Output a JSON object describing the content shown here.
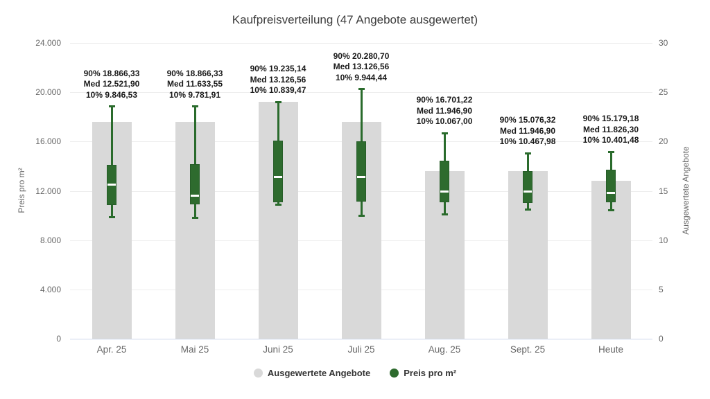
{
  "title": "Kaufpreisverteilung (47 Angebote ausgewertet)",
  "chart_data": {
    "type": "bar",
    "subtype": "bar+boxplot combo, dual y-axes",
    "categories": [
      "Apr. 25",
      "Mai 25",
      "Juni 25",
      "Juli 25",
      "Aug. 25",
      "Sept. 25",
      "Heute"
    ],
    "left_axis": {
      "label": "Preis pro m²",
      "range": [
        0,
        24000
      ],
      "tick_labels": [
        "24.000",
        "20.000",
        "16.000",
        "12.000",
        "8.000",
        "4.000",
        "0"
      ]
    },
    "right_axis": {
      "label": "Ausgewertete Angebote",
      "range": [
        0,
        30
      ],
      "tick_labels": [
        "30",
        "25",
        "20",
        "15",
        "10",
        "5",
        "0"
      ]
    },
    "grid": true,
    "legend_position": "bottom",
    "series": [
      {
        "name": "Ausgewertete Angebote",
        "type": "bar",
        "yaxis": "right",
        "color": "#d9d9d9",
        "values": [
          22,
          22,
          24,
          22,
          17,
          17,
          16
        ]
      },
      {
        "name": "Preis pro m²",
        "type": "boxplot",
        "yaxis": "left",
        "color": "#2e6b2e",
        "points": [
          {
            "p90": 18866.33,
            "q3": 14100,
            "med": 12521.9,
            "q1": 10850,
            "p10": 9846.53
          },
          {
            "p90": 18866.33,
            "q3": 14150,
            "med": 11633.55,
            "q1": 10900,
            "p10": 9781.91
          },
          {
            "p90": 19235.14,
            "q3": 16050,
            "med": 13126.56,
            "q1": 11050,
            "p10": 10839.47
          },
          {
            "p90": 20280.7,
            "q3": 16000,
            "med": 13126.56,
            "q1": 11100,
            "p10": 9944.44
          },
          {
            "p90": 16701.22,
            "q3": 14430,
            "med": 11946.9,
            "q1": 11050,
            "p10": 10067.0
          },
          {
            "p90": 15076.32,
            "q3": 13600,
            "med": 11946.9,
            "q1": 11020,
            "p10": 10467.98
          },
          {
            "p90": 15179.18,
            "q3": 13740,
            "med": 11826.3,
            "q1": 11050,
            "p10": 10401.48
          }
        ]
      }
    ],
    "annotations": [
      {
        "lines": [
          "90% 18.866,33",
          "Med 12.521,90",
          "10% 9.846,53"
        ]
      },
      {
        "lines": [
          "90% 18.866,33",
          "Med 11.633,55",
          "10% 9.781,91"
        ]
      },
      {
        "lines": [
          "90% 19.235,14",
          "Med 13.126,56",
          "10% 10.839,47"
        ]
      },
      {
        "lines": [
          "90% 20.280,70",
          "Med 13.126,56",
          "10% 9.944,44"
        ]
      },
      {
        "lines": [
          "90% 16.701,22",
          "Med 11.946,90",
          "10% 10.067,00"
        ]
      },
      {
        "lines": [
          "90% 15.076,32",
          "Med 11.946,90",
          "10% 10.467,98"
        ]
      },
      {
        "lines": [
          "90% 15.179,18",
          "Med 11.826,30",
          "10% 10.401,48"
        ]
      }
    ]
  }
}
